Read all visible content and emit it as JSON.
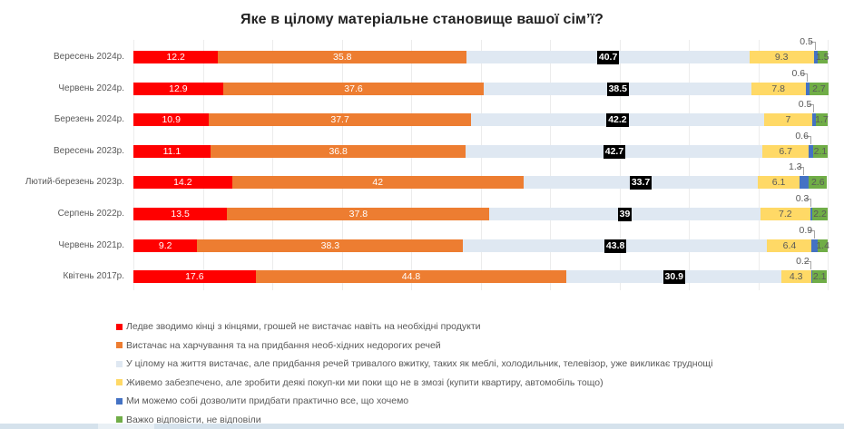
{
  "chart_data": {
    "type": "bar",
    "orientation": "horizontal",
    "stacked": true,
    "title": "Яке в цілому  матеріальне становище вашої сім’ї?",
    "xlabel": "",
    "ylabel": "",
    "xlim": [
      0,
      100
    ],
    "grid": true,
    "legend_position": "bottom-left",
    "categories": [
      "Вересень 2024р.",
      "Червень 2024р.",
      "Березень 2024р.",
      "Вересень 2023р.",
      "Лютий-березень 2023р.",
      "Серпень  2022р.",
      "Червень 2021р.",
      "Квітень 2017р."
    ],
    "series": [
      {
        "name": "Ледве зводимо кінці з кінцями, грошей не вистачає навіть  на необхідні продукти",
        "color": "#ff0000",
        "label_style": "white",
        "values": [
          12.2,
          12.9,
          10.9,
          11.1,
          14.2,
          13.5,
          9.2,
          17.6
        ]
      },
      {
        "name": "Вистачає на харчування та на придбання   необ-хідних недорогих речей",
        "color": "#ed7d31",
        "label_style": "white",
        "values": [
          35.8,
          37.6,
          37.7,
          36.8,
          42,
          37.8,
          38.3,
          44.8
        ]
      },
      {
        "name": "У цілому на життя вистачає, але придбання  речей тривалого вжитку, таких як меблі, холодильник, телевізор, уже викликає труднощі",
        "color": "#dfe8f2",
        "label_style": "black-box",
        "values": [
          40.7,
          38.5,
          42.2,
          42.7,
          33.7,
          39,
          43.8,
          30.9
        ]
      },
      {
        "name": "Живемо забезпечено, але зробити деякі покуп-ки ми поки що не в змозі (купити квартиру, автомобіль тощо)",
        "color": "#ffd966",
        "label_style": "dark",
        "values": [
          9.3,
          7.8,
          7,
          6.7,
          6.1,
          7.2,
          6.4,
          4.3
        ]
      },
      {
        "name": "Ми можемо собі дозволити придбати практично все, що хочемо",
        "color": "#4472c4",
        "label_style": "above",
        "values": [
          0.5,
          0.6,
          0.5,
          0.6,
          1.3,
          0.3,
          0.9,
          0.2
        ]
      },
      {
        "name": "Важко відповісти, не відповіли",
        "color": "#70ad47",
        "label_style": "dark",
        "values": [
          1.5,
          2.7,
          1.7,
          2.1,
          2.6,
          2.2,
          1.4,
          2.1
        ]
      }
    ]
  }
}
